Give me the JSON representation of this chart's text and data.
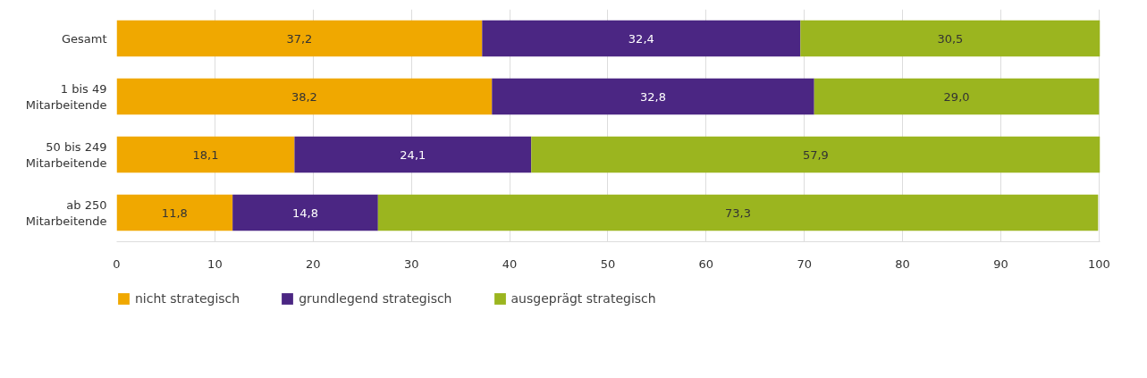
{
  "chart_data": {
    "type": "bar",
    "orientation": "horizontal",
    "stacked": true,
    "categories": [
      "Gesamt",
      "1 bis 49\nMitarbeitende",
      "50 bis 249\nMitarbeitende",
      "ab 250\nMitarbeitende"
    ],
    "series": [
      {
        "name": "nicht strategisch",
        "color": "#f0a800",
        "values": [
          37.2,
          38.2,
          18.1,
          11.8
        ],
        "value_labels": [
          "37,2",
          "38,2",
          "18,1",
          "11,8"
        ]
      },
      {
        "name": "grundlegend strategisch",
        "color": "#4b2683",
        "values": [
          32.4,
          32.8,
          24.1,
          14.8
        ],
        "value_labels": [
          "32,4",
          "32,8",
          "24,1",
          "14,8"
        ]
      },
      {
        "name": "ausgeprägt strategisch",
        "color": "#9bb51f",
        "values": [
          30.5,
          29.0,
          57.9,
          73.3
        ],
        "value_labels": [
          "30,5",
          "29,0",
          "57,9",
          "73,3"
        ]
      }
    ],
    "xlim": [
      0,
      100.1
    ],
    "xticks": [
      0,
      10,
      20,
      30,
      40,
      50,
      60,
      70,
      80,
      90,
      100
    ],
    "grid": "x",
    "legend": "bottom"
  }
}
